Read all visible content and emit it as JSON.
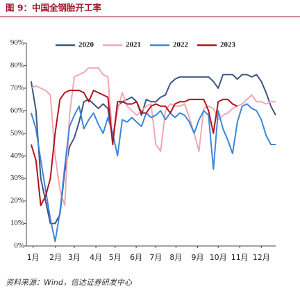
{
  "chart_data": {
    "type": "line",
    "title": "图 9：中国全钢胎开工率",
    "source": "资料来源：Wind，信达证券研发中心",
    "x": [
      0,
      1,
      2,
      3,
      4,
      5,
      6,
      7,
      8,
      9,
      10,
      11,
      12,
      13,
      14,
      15,
      16,
      17,
      18,
      19,
      20,
      21,
      22,
      23,
      24,
      25,
      26,
      27,
      28,
      29,
      30,
      31,
      32,
      33,
      34,
      35,
      36,
      37,
      38,
      39,
      40,
      41,
      42,
      43,
      44,
      45,
      46,
      47,
      48,
      49,
      50,
      51,
      52
    ],
    "xlim": [
      0,
      52
    ],
    "xticks": [
      {
        "value": 1.4,
        "label": "1月"
      },
      {
        "value": 6.1,
        "label": "2月"
      },
      {
        "value": 10,
        "label": "3月"
      },
      {
        "value": 14.5,
        "label": "4月"
      },
      {
        "value": 18.5,
        "label": "5月"
      },
      {
        "value": 22.9,
        "label": "6月"
      },
      {
        "value": 27,
        "label": "7月"
      },
      {
        "value": 31.2,
        "label": "8月"
      },
      {
        "value": 35.7,
        "label": "9月"
      },
      {
        "value": 40,
        "label": "10月"
      },
      {
        "value": 44.5,
        "label": "11月"
      },
      {
        "value": 49,
        "label": "12月"
      }
    ],
    "ylim": [
      0,
      90
    ],
    "yticks": [
      {
        "value": 0,
        "label": "0%"
      },
      {
        "value": 10,
        "label": "10%"
      },
      {
        "value": 20,
        "label": "20%"
      },
      {
        "value": 30,
        "label": "30%"
      },
      {
        "value": 40,
        "label": "40%"
      },
      {
        "value": 50,
        "label": "50%"
      },
      {
        "value": 60,
        "label": "60%"
      },
      {
        "value": 70,
        "label": "70%"
      },
      {
        "value": 80,
        "label": "80%"
      },
      {
        "value": 90,
        "label": "90%"
      }
    ],
    "legend": "top",
    "series": [
      {
        "name": "2020",
        "color": "#3b5580",
        "values": [
          null,
          73,
          60,
          30,
          20,
          10,
          10,
          14,
          33,
          44,
          48,
          55,
          64,
          65,
          63,
          61,
          63,
          61,
          47,
          62,
          64,
          65,
          66,
          64,
          58,
          65,
          64,
          64,
          66,
          67,
          72,
          74,
          75,
          75,
          75,
          75,
          75,
          75,
          75,
          73,
          70,
          76,
          76,
          76,
          74,
          76,
          76,
          75,
          76,
          73,
          68,
          62,
          58
        ]
      },
      {
        "name": "2021",
        "color": "#f2a7b1",
        "values": [
          null,
          70,
          71,
          70,
          69,
          67,
          40,
          25,
          18,
          58,
          75,
          76,
          77,
          79,
          79,
          79,
          76,
          75,
          47,
          60,
          68,
          62,
          60,
          58,
          60,
          62,
          63,
          45,
          42,
          60,
          63,
          62,
          62,
          63,
          57,
          50,
          42,
          61,
          62,
          61,
          56,
          58,
          59,
          61,
          62,
          63,
          65,
          67,
          64,
          64,
          63,
          64,
          64
        ]
      },
      {
        "name": "2022",
        "color": "#3b86de",
        "values": [
          null,
          59,
          52,
          38,
          25,
          12,
          2,
          15,
          35,
          53,
          58,
          62,
          52,
          56,
          59,
          54,
          50,
          57,
          50,
          40,
          56,
          55,
          57,
          55,
          53,
          59,
          57,
          58,
          60,
          56,
          59,
          57,
          59,
          58,
          55,
          50,
          56,
          60,
          58,
          34,
          60,
          52,
          47,
          41,
          55,
          62,
          63,
          61,
          60,
          56,
          49,
          45,
          45
        ]
      },
      {
        "name": "2023",
        "color": "#b3121c",
        "values": [
          null,
          45,
          38,
          18,
          22,
          30,
          50,
          65,
          68,
          69,
          69,
          69,
          68,
          64,
          69,
          68,
          67,
          66,
          45,
          64,
          64,
          63,
          63,
          64,
          59,
          59,
          62,
          63,
          62,
          62,
          59,
          63,
          64,
          64,
          65,
          65,
          65,
          65,
          60,
          50,
          64,
          65,
          65,
          63,
          62,
          null,
          null,
          null,
          null,
          null,
          null,
          null,
          null
        ]
      }
    ]
  }
}
